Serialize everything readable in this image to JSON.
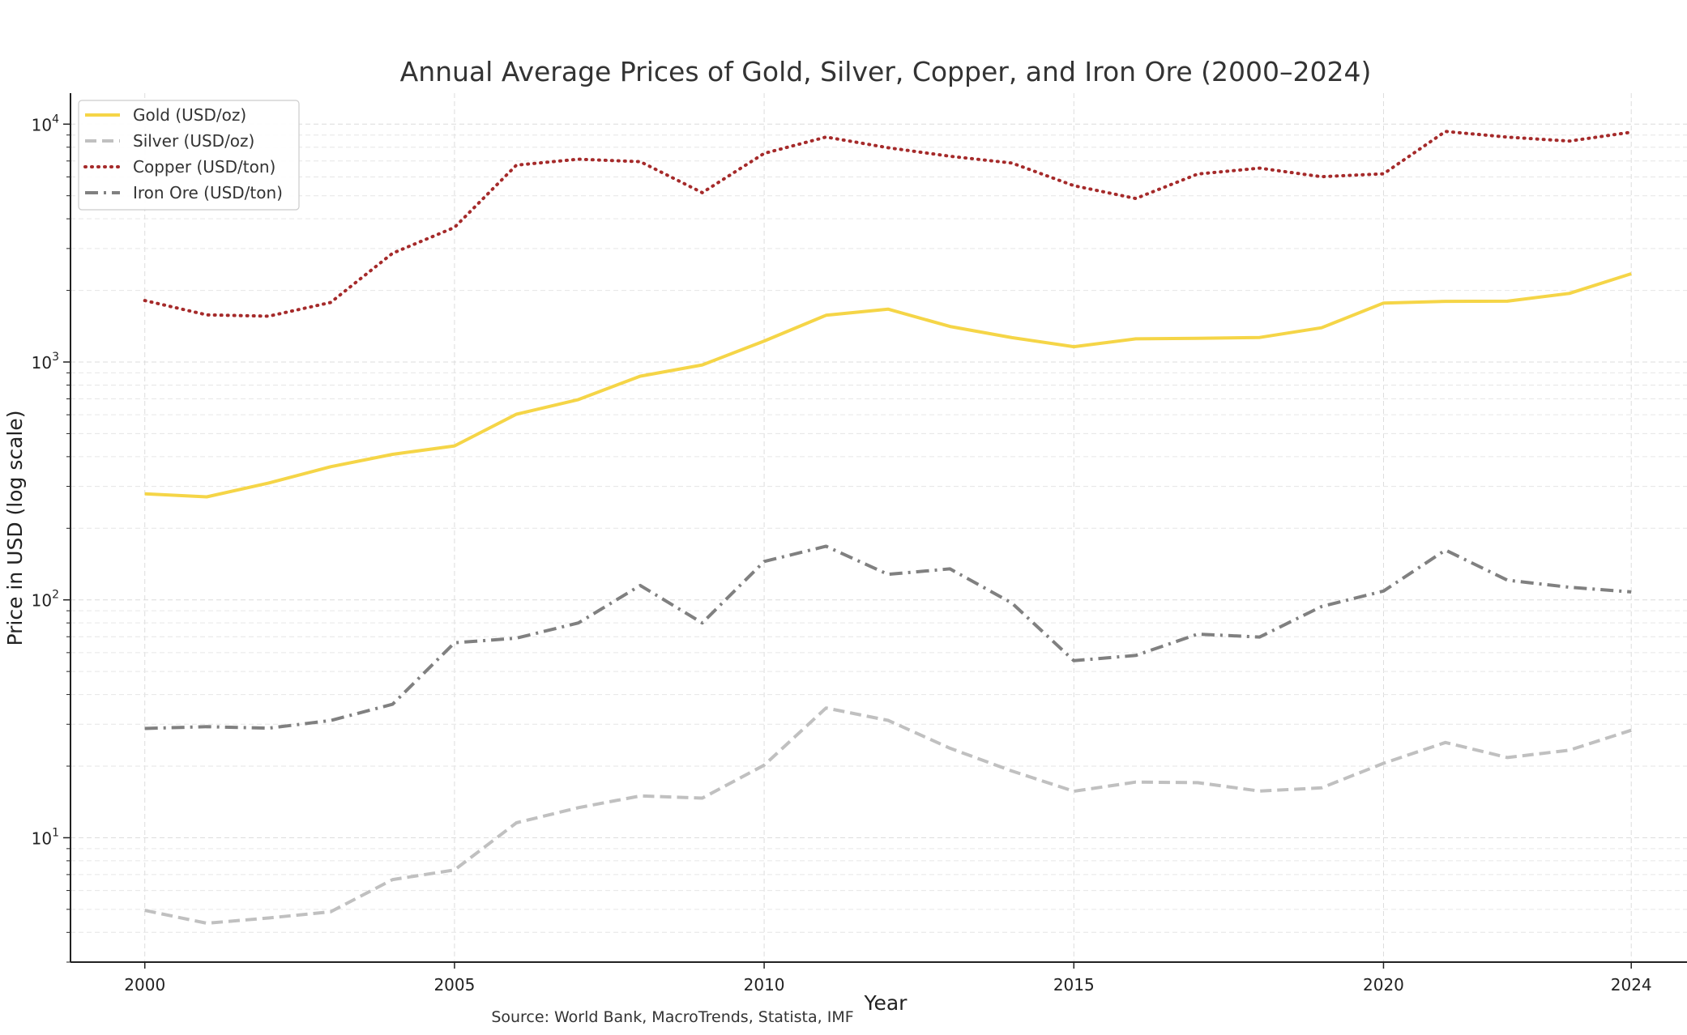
{
  "chart_data": {
    "type": "line",
    "title": "Annual Average Prices of Gold, Silver, Copper, and Iron Ore (2000–2024)",
    "xlabel": "Year",
    "ylabel": "Price in USD (log scale)",
    "yscale": "log",
    "xlim": [
      1998.8,
      2024.9
    ],
    "ylim": [
      3.0,
      13500
    ],
    "grid": true,
    "legend_position": "top-left",
    "source": "Source: World Bank, MacroTrends, Statista, IMF",
    "x_ticks": [
      {
        "value": 2000,
        "label": "2000"
      },
      {
        "value": 2005,
        "label": "2005"
      },
      {
        "value": 2010,
        "label": "2010"
      },
      {
        "value": 2015,
        "label": "2015"
      },
      {
        "value": 2020,
        "label": "2020"
      },
      {
        "value": 2024,
        "label": "2024"
      }
    ],
    "y_ticks": [
      {
        "value": 10,
        "base": "10",
        "exp": "1"
      },
      {
        "value": 100,
        "base": "10",
        "exp": "2"
      },
      {
        "value": 1000,
        "base": "10",
        "exp": "3"
      },
      {
        "value": 10000,
        "base": "10",
        "exp": "4"
      }
    ],
    "x": [
      2000,
      2001,
      2002,
      2003,
      2004,
      2005,
      2006,
      2007,
      2008,
      2009,
      2010,
      2011,
      2012,
      2013,
      2014,
      2015,
      2016,
      2017,
      2018,
      2019,
      2020,
      2021,
      2022,
      2023,
      2024
    ],
    "series": [
      {
        "name": "Gold (USD/oz)",
        "color": "#f5d547",
        "dash": "solid",
        "values": [
          279,
          271,
          310,
          363,
          409,
          444,
          603,
          695,
          872,
          972,
          1225,
          1572,
          1669,
          1411,
          1266,
          1160,
          1251,
          1257,
          1268,
          1393,
          1770,
          1799,
          1801,
          1943,
          2350
        ]
      },
      {
        "name": "Silver (USD/oz)",
        "color": "#c0c0c0",
        "dash": "dashed",
        "values": [
          4.95,
          4.37,
          4.6,
          4.88,
          6.67,
          7.32,
          11.55,
          13.38,
          14.99,
          14.67,
          20.19,
          35.12,
          31.15,
          23.79,
          19.08,
          15.68,
          17.14,
          17.05,
          15.71,
          16.21,
          20.55,
          25.14,
          21.73,
          23.35,
          28.3
        ]
      },
      {
        "name": "Copper (USD/ton)",
        "color": "#a52a2a",
        "dash": "dotted",
        "values": [
          1813,
          1578,
          1559,
          1779,
          2866,
          3679,
          6722,
          7118,
          6956,
          5150,
          7535,
          8828,
          7962,
          7332,
          6863,
          5510,
          4868,
          6170,
          6530,
          6010,
          6181,
          9317,
          8822,
          8490,
          9250
        ]
      },
      {
        "name": "Iron Ore (USD/ton)",
        "color": "#808080",
        "dash": "dashdot",
        "values": [
          28.8,
          29.3,
          28.9,
          31.1,
          36.4,
          66,
          69,
          80,
          115,
          80,
          145,
          168,
          128,
          135,
          97,
          55.5,
          58.4,
          71.8,
          69.8,
          93.8,
          108.9,
          162,
          121,
          113,
          108
        ]
      }
    ]
  }
}
